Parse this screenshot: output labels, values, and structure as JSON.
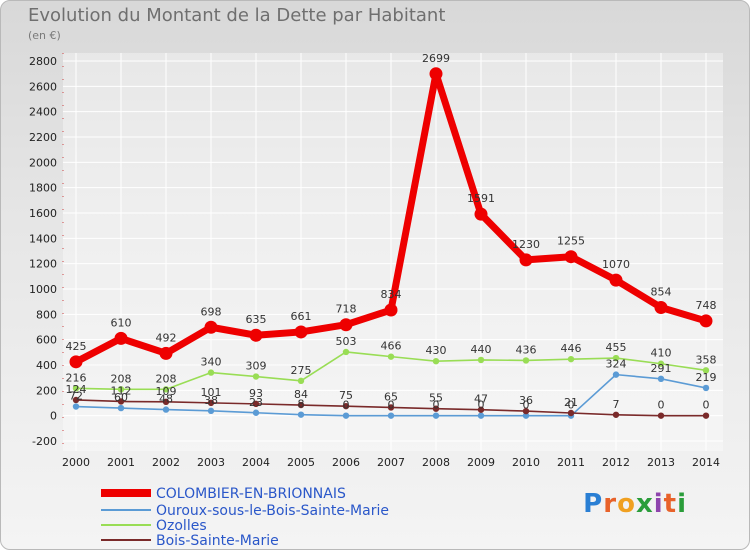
{
  "title": "Evolution du Montant de la Dette par Habitant",
  "subtitle": "(en €)",
  "logo": "Proxiti",
  "chart_data": {
    "type": "line",
    "title": "Evolution du Montant de la Dette par Habitant",
    "ylabel": "(en €)",
    "x": [
      2000,
      2001,
      2002,
      2003,
      2004,
      2005,
      2006,
      2007,
      2008,
      2009,
      2010,
      2011,
      2012,
      2013,
      2014
    ],
    "ylim": [
      -200,
      2800
    ],
    "yticks": [
      -200,
      0,
      200,
      400,
      600,
      800,
      1000,
      1200,
      1400,
      1600,
      1800,
      2000,
      2200,
      2400,
      2600,
      2800
    ],
    "series": [
      {
        "name": "COLOMBIER-EN-BRIONNAIS",
        "color": "#ee0000",
        "values": [
          425,
          610,
          492,
          698,
          635,
          661,
          718,
          834,
          2699,
          1591,
          1230,
          1255,
          1070,
          854,
          748
        ]
      },
      {
        "name": "Ouroux-sous-le-Bois-Sainte-Marie",
        "color": "#5b9bd5",
        "values": [
          72,
          60,
          48,
          38,
          23,
          8,
          0,
          0,
          0,
          0,
          0,
          0,
          324,
          291,
          219
        ]
      },
      {
        "name": "Ozolles",
        "color": "#99dd55",
        "values": [
          216,
          208,
          208,
          340,
          309,
          275,
          503,
          466,
          430,
          440,
          436,
          446,
          455,
          410,
          358
        ]
      },
      {
        "name": "Bois-Sainte-Marie",
        "color": "#7a2a2a",
        "values": [
          124,
          112,
          109,
          101,
          93,
          84,
          75,
          65,
          55,
          47,
          36,
          21,
          7,
          0,
          0
        ]
      }
    ],
    "labels": [
      [
        "425",
        "610",
        "492",
        "698",
        "635",
        "661",
        "718",
        "834",
        "2699",
        "1591",
        "1230",
        "1255",
        "1070",
        "854",
        "748"
      ],
      [
        "72",
        "60",
        "48",
        "38",
        "23",
        "8",
        "0",
        "0",
        "0",
        "0",
        "0",
        "0",
        "324",
        "291",
        "219"
      ],
      [
        "216",
        "208",
        "208",
        "340",
        "309",
        "275",
        "503",
        "466",
        "430",
        "440",
        "436",
        "446",
        "455",
        "410",
        "358"
      ],
      [
        "124",
        "112",
        "109",
        "101",
        "93",
        "84",
        "75",
        "65",
        "55",
        "47",
        "36",
        "21",
        "7",
        "0",
        "0"
      ]
    ]
  }
}
